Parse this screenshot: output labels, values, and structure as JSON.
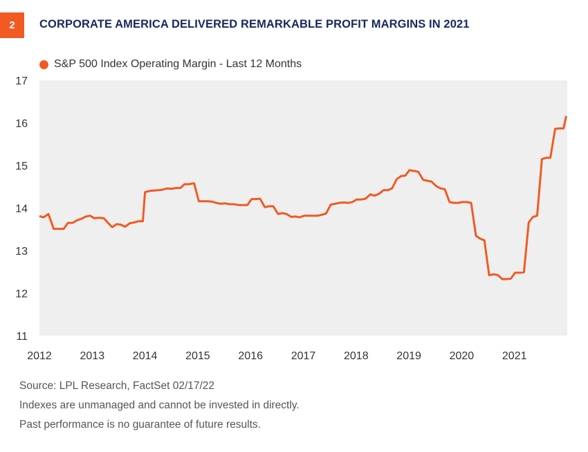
{
  "header": {
    "figure_number": "2",
    "title": "CORPORATE AMERICA DELIVERED REMARKABLE PROFIT MARGINS IN 2021"
  },
  "colors": {
    "accent": "#f15a22",
    "title": "#17285f",
    "plot_bg": "#efefef"
  },
  "footer": {
    "source": "Source: LPL Research, FactSet  02/17/22",
    "disclaimer_1": "Indexes are unmanaged and cannot be invested in directly.",
    "disclaimer_2": "Past performance is no guarantee of future results."
  },
  "chart_data": {
    "type": "line",
    "title": "",
    "xlabel": "",
    "ylabel": "",
    "ylim": [
      11,
      17
    ],
    "xlim": [
      2012,
      2022
    ],
    "yticks": [
      "17",
      "16",
      "15",
      "14",
      "13",
      "12",
      "11"
    ],
    "xticks": [
      "2012",
      "2013",
      "2014",
      "2015",
      "2016",
      "2017",
      "2018",
      "2019",
      "2020",
      "2021"
    ],
    "grid": false,
    "legend_position": "top-left",
    "series": [
      {
        "name": "S&P 500 Index Operating Margin - Last 12 Months",
        "color": "#f15a22",
        "points": [
          [
            2012.0,
            13.81
          ],
          [
            2012.08,
            13.78
          ],
          [
            2012.17,
            13.86
          ],
          [
            2012.27,
            13.51
          ],
          [
            2012.36,
            13.51
          ],
          [
            2012.46,
            13.51
          ],
          [
            2012.54,
            13.65
          ],
          [
            2012.63,
            13.65
          ],
          [
            2012.71,
            13.71
          ],
          [
            2012.8,
            13.75
          ],
          [
            2012.88,
            13.8
          ],
          [
            2012.96,
            13.82
          ],
          [
            2013.04,
            13.76
          ],
          [
            2013.13,
            13.77
          ],
          [
            2013.22,
            13.76
          ],
          [
            2013.3,
            13.65
          ],
          [
            2013.38,
            13.55
          ],
          [
            2013.46,
            13.62
          ],
          [
            2013.54,
            13.61
          ],
          [
            2013.62,
            13.56
          ],
          [
            2013.71,
            13.64
          ],
          [
            2013.79,
            13.66
          ],
          [
            2013.88,
            13.69
          ],
          [
            2013.96,
            13.69
          ],
          [
            2014.0,
            14.37
          ],
          [
            2014.08,
            14.4
          ],
          [
            2014.17,
            14.41
          ],
          [
            2014.25,
            14.42
          ],
          [
            2014.33,
            14.43
          ],
          [
            2014.42,
            14.46
          ],
          [
            2014.5,
            14.45
          ],
          [
            2014.58,
            14.47
          ],
          [
            2014.67,
            14.47
          ],
          [
            2014.75,
            14.56
          ],
          [
            2014.83,
            14.56
          ],
          [
            2014.93,
            14.58
          ],
          [
            2015.02,
            14.16
          ],
          [
            2015.1,
            14.16
          ],
          [
            2015.18,
            14.16
          ],
          [
            2015.27,
            14.15
          ],
          [
            2015.35,
            14.12
          ],
          [
            2015.43,
            14.1
          ],
          [
            2015.52,
            14.11
          ],
          [
            2015.6,
            14.09
          ],
          [
            2015.68,
            14.09
          ],
          [
            2015.77,
            14.07
          ],
          [
            2015.85,
            14.07
          ],
          [
            2015.94,
            14.07
          ],
          [
            2016.02,
            14.21
          ],
          [
            2016.1,
            14.21
          ],
          [
            2016.18,
            14.22
          ],
          [
            2016.27,
            14.02
          ],
          [
            2016.35,
            14.04
          ],
          [
            2016.43,
            14.04
          ],
          [
            2016.52,
            13.86
          ],
          [
            2016.6,
            13.88
          ],
          [
            2016.68,
            13.86
          ],
          [
            2016.77,
            13.79
          ],
          [
            2016.85,
            13.8
          ],
          [
            2016.93,
            13.78
          ],
          [
            2017.02,
            13.82
          ],
          [
            2017.1,
            13.82
          ],
          [
            2017.18,
            13.82
          ],
          [
            2017.27,
            13.82
          ],
          [
            2017.35,
            13.84
          ],
          [
            2017.43,
            13.87
          ],
          [
            2017.52,
            14.08
          ],
          [
            2017.6,
            14.1
          ],
          [
            2017.68,
            14.12
          ],
          [
            2017.77,
            14.13
          ],
          [
            2017.85,
            14.12
          ],
          [
            2017.93,
            14.14
          ],
          [
            2018.01,
            14.2
          ],
          [
            2018.1,
            14.2
          ],
          [
            2018.18,
            14.22
          ],
          [
            2018.27,
            14.32
          ],
          [
            2018.35,
            14.29
          ],
          [
            2018.43,
            14.33
          ],
          [
            2018.52,
            14.42
          ],
          [
            2018.6,
            14.42
          ],
          [
            2018.68,
            14.46
          ],
          [
            2018.77,
            14.68
          ],
          [
            2018.85,
            14.75
          ],
          [
            2018.93,
            14.76
          ],
          [
            2019.01,
            14.89
          ],
          [
            2019.1,
            14.87
          ],
          [
            2019.18,
            14.85
          ],
          [
            2019.27,
            14.66
          ],
          [
            2019.35,
            14.64
          ],
          [
            2019.43,
            14.62
          ],
          [
            2019.52,
            14.51
          ],
          [
            2019.6,
            14.46
          ],
          [
            2019.68,
            14.44
          ],
          [
            2019.77,
            14.14
          ],
          [
            2019.85,
            14.12
          ],
          [
            2019.93,
            14.12
          ],
          [
            2020.01,
            14.14
          ],
          [
            2020.1,
            14.14
          ],
          [
            2020.18,
            14.12
          ],
          [
            2020.27,
            13.35
          ],
          [
            2020.35,
            13.28
          ],
          [
            2020.43,
            13.24
          ],
          [
            2020.52,
            12.42
          ],
          [
            2020.6,
            12.44
          ],
          [
            2020.68,
            12.43
          ],
          [
            2020.77,
            12.33
          ],
          [
            2020.85,
            12.33
          ],
          [
            2020.93,
            12.34
          ],
          [
            2021.01,
            12.48
          ],
          [
            2021.1,
            12.48
          ],
          [
            2021.18,
            12.49
          ],
          [
            2021.27,
            13.66
          ],
          [
            2021.35,
            13.79
          ],
          [
            2021.43,
            13.82
          ],
          [
            2021.52,
            15.15
          ],
          [
            2021.6,
            15.18
          ],
          [
            2021.68,
            15.18
          ],
          [
            2021.77,
            15.86
          ],
          [
            2021.85,
            15.87
          ],
          [
            2021.93,
            15.87
          ],
          [
            2021.98,
            16.16
          ]
        ]
      }
    ]
  }
}
